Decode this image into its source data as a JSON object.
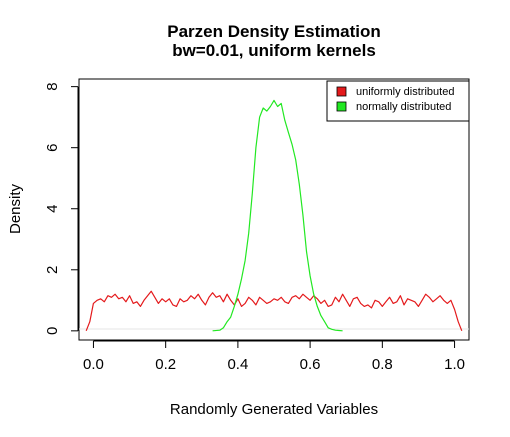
{
  "chart_data": {
    "type": "line",
    "title": "Parzen Density Estimation",
    "subtitle": "bw=0.01, uniform kernels",
    "xlabel": "Randomly Generated Variables",
    "ylabel": "Density",
    "xlim": [
      -0.04,
      1.04
    ],
    "ylim": [
      -0.3,
      8.25
    ],
    "x_ticks": [
      "0.0",
      "0.2",
      "0.4",
      "0.6",
      "0.8",
      "1.0"
    ],
    "y_ticks": [
      "0",
      "2",
      "4",
      "6",
      "8"
    ],
    "grid": false,
    "legend_position": "top-right",
    "series": [
      {
        "name": "uniformly distributed",
        "color": "#e41a1c",
        "x": [
          -0.02,
          -0.01,
          0.0,
          0.01,
          0.02,
          0.03,
          0.04,
          0.05,
          0.06,
          0.07,
          0.08,
          0.09,
          0.1,
          0.11,
          0.12,
          0.13,
          0.14,
          0.15,
          0.16,
          0.17,
          0.18,
          0.19,
          0.2,
          0.21,
          0.22,
          0.23,
          0.24,
          0.25,
          0.26,
          0.27,
          0.28,
          0.29,
          0.3,
          0.31,
          0.32,
          0.33,
          0.34,
          0.35,
          0.36,
          0.37,
          0.38,
          0.39,
          0.4,
          0.41,
          0.42,
          0.43,
          0.44,
          0.45,
          0.46,
          0.47,
          0.48,
          0.49,
          0.5,
          0.51,
          0.52,
          0.53,
          0.54,
          0.55,
          0.56,
          0.57,
          0.58,
          0.59,
          0.6,
          0.61,
          0.62,
          0.63,
          0.64,
          0.65,
          0.66,
          0.67,
          0.68,
          0.69,
          0.7,
          0.71,
          0.72,
          0.73,
          0.74,
          0.75,
          0.76,
          0.77,
          0.78,
          0.79,
          0.8,
          0.81,
          0.82,
          0.83,
          0.84,
          0.85,
          0.86,
          0.87,
          0.88,
          0.89,
          0.9,
          0.91,
          0.92,
          0.93,
          0.94,
          0.95,
          0.96,
          0.97,
          0.98,
          0.99,
          1.0,
          1.01,
          1.02
        ],
        "y": [
          0.0,
          0.3,
          0.9,
          1.0,
          1.05,
          0.95,
          1.15,
          1.1,
          1.2,
          1.05,
          1.1,
          0.95,
          1.15,
          0.9,
          0.95,
          0.8,
          1.0,
          1.15,
          1.3,
          1.1,
          0.9,
          1.05,
          0.95,
          1.05,
          0.85,
          0.8,
          1.05,
          0.95,
          1.0,
          1.15,
          1.05,
          1.2,
          1.0,
          0.85,
          1.1,
          1.25,
          1.1,
          1.15,
          0.95,
          1.2,
          1.0,
          0.85,
          1.05,
          0.8,
          0.9,
          1.1,
          1.0,
          0.85,
          1.1,
          1.0,
          0.9,
          0.95,
          1.05,
          1.0,
          1.1,
          0.95,
          0.9,
          1.1,
          1.15,
          1.05,
          1.2,
          1.1,
          1.0,
          1.15,
          1.05,
          0.9,
          1.0,
          0.8,
          0.85,
          1.1,
          0.95,
          1.2,
          1.0,
          0.8,
          1.05,
          1.1,
          0.9,
          0.8,
          0.85,
          0.75,
          1.0,
          0.95,
          0.8,
          0.95,
          1.1,
          0.9,
          0.95,
          1.15,
          0.85,
          1.05,
          1.0,
          0.95,
          0.8,
          1.0,
          1.2,
          1.1,
          0.95,
          1.05,
          1.15,
          1.0,
          0.9,
          1.0,
          0.7,
          0.3,
          0.0
        ]
      },
      {
        "name": "normally distributed",
        "color": "#22e822",
        "x": [
          0.33,
          0.35,
          0.36,
          0.37,
          0.38,
          0.39,
          0.4,
          0.41,
          0.42,
          0.43,
          0.44,
          0.45,
          0.46,
          0.47,
          0.48,
          0.49,
          0.5,
          0.51,
          0.52,
          0.53,
          0.54,
          0.55,
          0.56,
          0.57,
          0.58,
          0.59,
          0.6,
          0.61,
          0.62,
          0.63,
          0.64,
          0.65,
          0.66,
          0.67,
          0.68,
          0.69
        ],
        "y": [
          0.0,
          0.02,
          0.1,
          0.3,
          0.45,
          0.8,
          1.2,
          1.7,
          2.3,
          3.2,
          4.5,
          6.0,
          7.0,
          7.3,
          7.2,
          7.35,
          7.55,
          7.35,
          7.45,
          6.9,
          6.5,
          6.1,
          5.6,
          4.8,
          3.8,
          2.6,
          1.8,
          1.2,
          0.8,
          0.5,
          0.3,
          0.1,
          0.05,
          0.02,
          0.01,
          0.0
        ]
      }
    ]
  }
}
